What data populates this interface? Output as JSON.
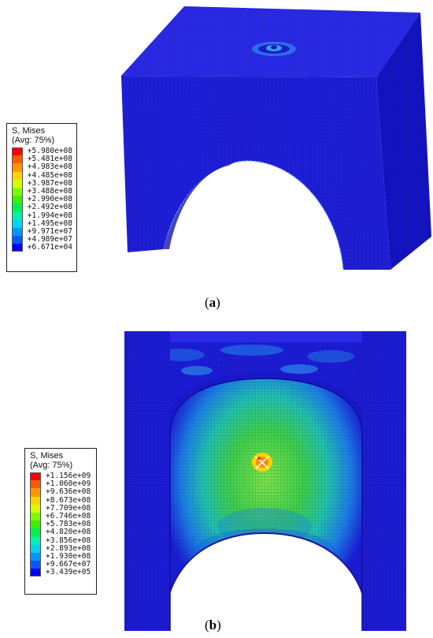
{
  "panel_a": {
    "legend": {
      "title_line1": "S, Mises",
      "title_line2": "(Avg: 75%)",
      "levels": [
        {
          "label": "+5.980e+08",
          "color": "#ff0000"
        },
        {
          "label": "+5.481e+08",
          "color": "#ff5a00"
        },
        {
          "label": "+4.983e+08",
          "color": "#ff9600"
        },
        {
          "label": "+4.485e+08",
          "color": "#ffd200"
        },
        {
          "label": "+3.987e+08",
          "color": "#d7ff00"
        },
        {
          "label": "+3.488e+08",
          "color": "#7dff00"
        },
        {
          "label": "+2.990e+08",
          "color": "#3cf000"
        },
        {
          "label": "+2.492e+08",
          "color": "#00f050"
        },
        {
          "label": "+1.994e+08",
          "color": "#00f0b4"
        },
        {
          "label": "+1.495e+08",
          "color": "#00d2f0"
        },
        {
          "label": "+9.971e+07",
          "color": "#0096ff"
        },
        {
          "label": "+4.989e+07",
          "color": "#005aff"
        },
        {
          "label": "+6.671e+04",
          "color": "#0000ff"
        }
      ]
    },
    "caption_open": "(",
    "caption_letter": "a",
    "caption_close": ")"
  },
  "panel_b": {
    "legend": {
      "title_line1": "S, Mises",
      "title_line2": "(Avg: 75%)",
      "levels": [
        {
          "label": "+1.156e+09",
          "color": "#ff0000"
        },
        {
          "label": "+1.060e+09",
          "color": "#ff5a00"
        },
        {
          "label": "+9.636e+08",
          "color": "#ff9600"
        },
        {
          "label": "+8.673e+08",
          "color": "#ffd200"
        },
        {
          "label": "+7.709e+08",
          "color": "#d7ff00"
        },
        {
          "label": "+6.746e+08",
          "color": "#7dff00"
        },
        {
          "label": "+5.783e+08",
          "color": "#3cf000"
        },
        {
          "label": "+4.820e+08",
          "color": "#00f050"
        },
        {
          "label": "+3.856e+08",
          "color": "#00f0b4"
        },
        {
          "label": "+2.893e+08",
          "color": "#00d2f0"
        },
        {
          "label": "+1.930e+08",
          "color": "#0096ff"
        },
        {
          "label": "+9.667e+07",
          "color": "#005aff"
        },
        {
          "label": "+3.439e+05",
          "color": "#0000ff"
        }
      ]
    },
    "caption_open": "(",
    "caption_letter": "b",
    "caption_close": ")"
  },
  "colors": {
    "base_blue": "#1a1adc",
    "top_face": "#2a2ae6",
    "side_face": "#1414c8",
    "mesh_line": "#0a0a6e",
    "green_zone": "#4fd84f",
    "cyan_zone": "#2fb4e8"
  }
}
